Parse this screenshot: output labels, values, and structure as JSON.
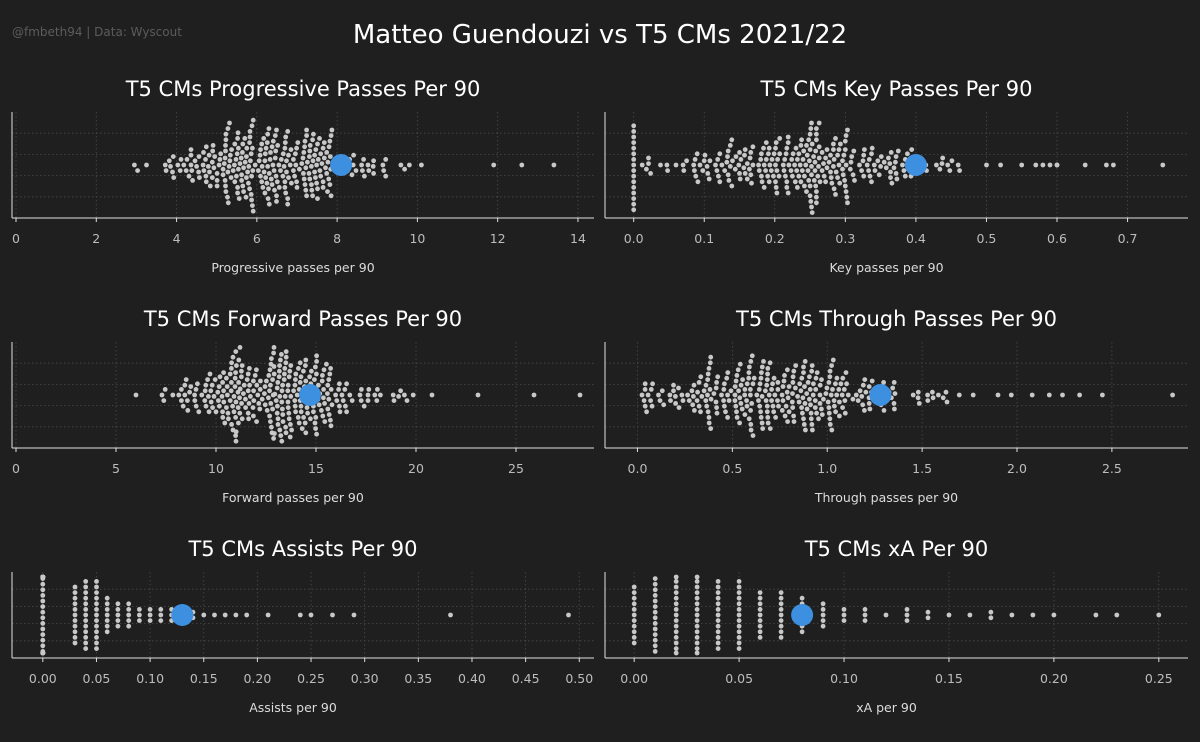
{
  "header": {
    "credit": "@fmbeth94 | Data: Wyscout",
    "title": "Matteo Guendouzi vs T5 CMs 2021/22"
  },
  "colors": {
    "background": "#1f1f1f",
    "others": "#c8c8c8",
    "highlight": "#3d8fe0",
    "axis": "#e0e0e0",
    "grid": "#4a4a4a"
  },
  "chart_data": [
    {
      "type": "scatter",
      "style": "beeswarm",
      "title": "T5 CMs Progressive Passes Per 90",
      "xlabel": "Progressive passes per 90",
      "xlim": [
        0,
        14.3
      ],
      "xticks": [
        0,
        2,
        4,
        6,
        8,
        10,
        12,
        14
      ],
      "tick_labels": [
        "0",
        "2",
        "4",
        "6",
        "8",
        "10",
        "12",
        "14"
      ],
      "grid": true,
      "highlight": {
        "value": 8.1,
        "label": ""
      },
      "outliers": [
        9.8,
        10.1,
        11.9,
        12.6,
        13.4
      ],
      "distribution": {
        "count": 280,
        "mean": 6.2,
        "sd": 1.3,
        "min": 2.6,
        "max": 9.7,
        "decimals": 2
      }
    },
    {
      "type": "scatter",
      "style": "beeswarm",
      "title": "T5 CMs Key Passes Per 90",
      "xlabel": "Key passes per 90",
      "xlim": [
        -0.035,
        0.78
      ],
      "xticks": [
        0,
        0.1,
        0.2,
        0.3,
        0.4,
        0.5,
        0.6,
        0.7
      ],
      "tick_labels": [
        "0.0",
        "0.1",
        "0.2",
        "0.3",
        "0.4",
        "0.5",
        "0.6",
        "0.7"
      ],
      "grid": true,
      "highlight": {
        "value": 0.4,
        "label": ""
      },
      "stack": {
        "value": 0,
        "count": 16
      },
      "outliers": [
        0.5,
        0.52,
        0.55,
        0.57,
        0.58,
        0.59,
        0.6,
        0.6,
        0.64,
        0.67,
        0.68,
        0.75
      ],
      "distribution": {
        "count": 270,
        "mean": 0.22,
        "sd": 0.1,
        "min": 0.01,
        "max": 0.47,
        "decimals": 3
      }
    },
    {
      "type": "scatter",
      "style": "beeswarm",
      "title": "T5 CMs Forward Passes Per 90",
      "xlabel": "Forward passes per 90",
      "xlim": [
        0,
        28.7
      ],
      "xticks": [
        0,
        5,
        10,
        15,
        20,
        25
      ],
      "tick_labels": [
        "0",
        "5",
        "10",
        "15",
        "20",
        "25"
      ],
      "grid": true,
      "highlight": {
        "value": 14.7,
        "label": ""
      },
      "outliers": [
        6.0,
        20.8,
        23.1,
        25.9,
        28.2
      ],
      "distribution": {
        "count": 300,
        "mean": 13.2,
        "sd": 2.7,
        "min": 7.0,
        "max": 20.0,
        "decimals": 2
      }
    },
    {
      "type": "scatter",
      "style": "beeswarm",
      "title": "T5 CMs Through Passes Per 90",
      "xlabel": "Through passes per 90",
      "xlim": [
        -0.15,
        2.88
      ],
      "xticks": [
        0,
        0.5,
        1.0,
        1.5,
        2.0,
        2.5
      ],
      "tick_labels": [
        "0.0",
        "0.5",
        "1.0",
        "1.5",
        "2.0",
        "2.5"
      ],
      "grid": true,
      "highlight": {
        "value": 1.28,
        "label": ""
      },
      "outliers": [
        1.9,
        1.97,
        2.08,
        2.17,
        2.24,
        2.33,
        2.45,
        2.82
      ],
      "distribution": {
        "count": 300,
        "mean": 0.75,
        "sd": 0.42,
        "min": 0.0,
        "max": 1.85,
        "decimals": 3
      }
    },
    {
      "type": "scatter",
      "style": "strip",
      "title": "T5 CMs Assists Per 90",
      "xlabel": "Assists per 90",
      "xlim": [
        -0.025,
        0.51
      ],
      "xticks": [
        0,
        0.05,
        0.1,
        0.15,
        0.2,
        0.25,
        0.3,
        0.35,
        0.4,
        0.45,
        0.5
      ],
      "tick_labels": [
        "0.00",
        "0.05",
        "0.10",
        "0.15",
        "0.20",
        "0.25",
        "0.30",
        "0.35",
        "0.40",
        "0.45",
        "0.50"
      ],
      "grid": true,
      "highlight": {
        "value": 0.13,
        "label": ""
      },
      "columns": [
        {
          "x": 0.0,
          "count": 40
        },
        {
          "x": 0.03,
          "count": 11
        },
        {
          "x": 0.04,
          "count": 13
        },
        {
          "x": 0.05,
          "count": 13
        },
        {
          "x": 0.06,
          "count": 7
        },
        {
          "x": 0.07,
          "count": 5
        },
        {
          "x": 0.08,
          "count": 5
        },
        {
          "x": 0.09,
          "count": 3
        },
        {
          "x": 0.1,
          "count": 3
        },
        {
          "x": 0.11,
          "count": 3
        },
        {
          "x": 0.12,
          "count": 3
        },
        {
          "x": 0.14,
          "count": 2
        },
        {
          "x": 0.15,
          "count": 1
        },
        {
          "x": 0.16,
          "count": 1
        },
        {
          "x": 0.17,
          "count": 1
        },
        {
          "x": 0.18,
          "count": 1
        },
        {
          "x": 0.19,
          "count": 1
        },
        {
          "x": 0.21,
          "count": 1
        },
        {
          "x": 0.24,
          "count": 1
        },
        {
          "x": 0.25,
          "count": 1
        },
        {
          "x": 0.27,
          "count": 1
        },
        {
          "x": 0.29,
          "count": 1
        },
        {
          "x": 0.38,
          "count": 1
        },
        {
          "x": 0.49,
          "count": 1
        }
      ]
    },
    {
      "type": "scatter",
      "style": "strip",
      "title": "T5 CMs xA Per 90",
      "xlabel": "xA per 90",
      "xlim": [
        -0.012,
        0.262
      ],
      "xticks": [
        0,
        0.05,
        0.1,
        0.15,
        0.2,
        0.25
      ],
      "tick_labels": [
        "0.00",
        "0.05",
        "0.10",
        "0.15",
        "0.20",
        "0.25"
      ],
      "grid": true,
      "highlight": {
        "value": 0.08,
        "label": ""
      },
      "columns": [
        {
          "x": 0.0,
          "count": 11
        },
        {
          "x": 0.01,
          "count": 14
        },
        {
          "x": 0.02,
          "count": 15
        },
        {
          "x": 0.03,
          "count": 15
        },
        {
          "x": 0.04,
          "count": 13
        },
        {
          "x": 0.05,
          "count": 13
        },
        {
          "x": 0.06,
          "count": 9
        },
        {
          "x": 0.07,
          "count": 9
        },
        {
          "x": 0.08,
          "count": 7
        },
        {
          "x": 0.09,
          "count": 5
        },
        {
          "x": 0.1,
          "count": 3
        },
        {
          "x": 0.11,
          "count": 3
        },
        {
          "x": 0.12,
          "count": 1
        },
        {
          "x": 0.13,
          "count": 3
        },
        {
          "x": 0.14,
          "count": 2
        },
        {
          "x": 0.15,
          "count": 1
        },
        {
          "x": 0.16,
          "count": 1
        },
        {
          "x": 0.17,
          "count": 2
        },
        {
          "x": 0.18,
          "count": 1
        },
        {
          "x": 0.19,
          "count": 1
        },
        {
          "x": 0.2,
          "count": 1
        },
        {
          "x": 0.22,
          "count": 1
        },
        {
          "x": 0.23,
          "count": 1
        },
        {
          "x": 0.25,
          "count": 1
        }
      ]
    }
  ]
}
